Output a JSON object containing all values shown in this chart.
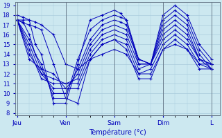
{
  "xlabel": "Température (°c)",
  "bg_color": "#cce8f0",
  "grid_color": "#aaccdd",
  "line_color": "#0000bb",
  "marker": "+",
  "ylim": [
    8,
    19
  ],
  "yticks": [
    8,
    9,
    10,
    11,
    12,
    13,
    14,
    15,
    16,
    17,
    18,
    19
  ],
  "xtick_labels": [
    "Jeu",
    "Ven",
    "Sam",
    "Dim",
    "L"
  ],
  "xtick_positions": [
    0,
    24,
    48,
    72,
    96
  ],
  "xlim": [
    -1,
    100
  ],
  "series_data": [
    {
      "x": [
        0,
        3,
        6,
        9,
        12,
        18,
        24,
        30,
        36,
        42,
        48,
        51,
        54,
        60,
        66,
        72,
        78,
        84,
        90,
        96
      ],
      "y": [
        18.0,
        17.8,
        17.5,
        15.0,
        14.0,
        9.0,
        9.0,
        13.0,
        17.5,
        18.0,
        18.5,
        18.2,
        17.5,
        13.5,
        13.0,
        18.0,
        19.0,
        18.0,
        15.0,
        13.5
      ]
    },
    {
      "x": [
        0,
        3,
        6,
        9,
        12,
        18,
        24,
        30,
        36,
        42,
        48,
        51,
        54,
        60,
        66,
        72,
        78,
        84,
        90,
        96
      ],
      "y": [
        17.5,
        17.3,
        16.0,
        14.0,
        13.0,
        9.5,
        9.5,
        13.5,
        16.5,
        17.5,
        18.0,
        17.8,
        17.5,
        13.0,
        13.0,
        17.5,
        18.5,
        17.5,
        14.5,
        13.0
      ]
    },
    {
      "x": [
        0,
        6,
        12,
        18,
        24,
        30,
        36,
        42,
        48,
        51,
        54,
        60,
        66,
        72,
        78,
        84,
        90,
        96
      ],
      "y": [
        17.5,
        15.5,
        12.5,
        10.0,
        10.0,
        12.5,
        15.5,
        17.0,
        17.5,
        17.3,
        17.0,
        13.5,
        13.0,
        17.0,
        18.0,
        17.0,
        14.0,
        12.5
      ]
    },
    {
      "x": [
        0,
        6,
        12,
        18,
        24,
        30,
        36,
        42,
        48,
        54,
        60,
        66,
        72,
        78,
        84,
        90,
        96
      ],
      "y": [
        17.5,
        15.0,
        12.0,
        10.5,
        10.5,
        12.0,
        15.0,
        16.5,
        17.0,
        16.5,
        13.5,
        13.0,
        16.5,
        17.5,
        16.5,
        13.5,
        13.0
      ]
    },
    {
      "x": [
        0,
        6,
        12,
        18,
        24,
        30,
        36,
        42,
        48,
        54,
        60,
        66,
        72,
        78,
        84,
        90,
        96
      ],
      "y": [
        17.5,
        14.5,
        11.5,
        11.0,
        11.0,
        11.5,
        14.5,
        16.0,
        16.5,
        16.0,
        13.0,
        13.0,
        16.0,
        17.0,
        16.0,
        13.5,
        13.0
      ]
    },
    {
      "x": [
        0,
        6,
        12,
        18,
        24,
        30,
        36,
        42,
        48,
        54,
        60,
        66,
        72,
        78,
        84,
        90,
        96
      ],
      "y": [
        17.5,
        14.0,
        12.0,
        11.5,
        11.0,
        11.0,
        14.0,
        15.5,
        16.0,
        15.5,
        12.5,
        13.0,
        15.5,
        16.5,
        15.5,
        13.5,
        12.5
      ]
    },
    {
      "x": [
        0,
        6,
        12,
        18,
        24,
        30,
        36,
        42,
        48,
        54,
        60,
        66,
        72,
        78,
        84,
        90,
        96
      ],
      "y": [
        17.5,
        13.5,
        12.5,
        12.0,
        10.5,
        10.5,
        13.5,
        15.0,
        15.5,
        15.0,
        12.0,
        12.5,
        15.0,
        16.0,
        15.0,
        13.0,
        12.5
      ]
    },
    {
      "x": [
        0,
        3,
        6,
        9,
        12,
        18,
        24,
        30,
        36,
        42,
        48,
        54,
        60,
        66,
        72,
        78,
        84,
        90,
        96
      ],
      "y": [
        17.5,
        17.2,
        17.0,
        16.8,
        16.5,
        13.0,
        9.5,
        9.0,
        13.5,
        15.0,
        15.5,
        14.5,
        11.5,
        11.5,
        14.5,
        15.5,
        14.5,
        12.5,
        12.5
      ]
    },
    {
      "x": [
        0,
        3,
        6,
        9,
        12,
        18,
        24,
        30,
        36,
        42,
        48,
        54,
        60,
        66,
        72,
        78,
        84,
        90,
        96
      ],
      "y": [
        17.5,
        17.5,
        17.5,
        17.3,
        17.0,
        16.0,
        13.0,
        12.5,
        13.5,
        14.0,
        14.5,
        14.0,
        12.0,
        12.0,
        14.5,
        15.0,
        14.5,
        13.0,
        13.0
      ]
    }
  ]
}
